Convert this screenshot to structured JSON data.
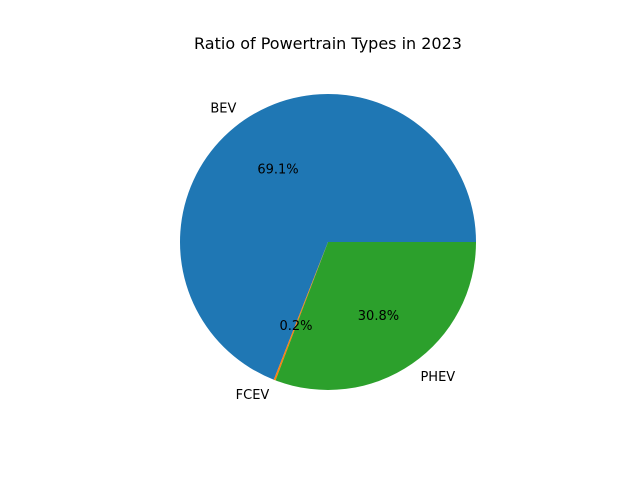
{
  "chart_data": {
    "type": "pie",
    "title": "Ratio of Powertrain Types in 2023",
    "slices": [
      {
        "label": "BEV",
        "value": 69.1,
        "pct_label": "69.1%",
        "color": "#1f77b4"
      },
      {
        "label": "FCEV",
        "value": 0.2,
        "pct_label": "0.2%",
        "color": "#ff7f0e"
      },
      {
        "label": "PHEV",
        "value": 30.8,
        "pct_label": "30.8%",
        "color": "#2ca02c"
      }
    ],
    "start_angle_deg": 0,
    "direction": "counterclockwise"
  }
}
